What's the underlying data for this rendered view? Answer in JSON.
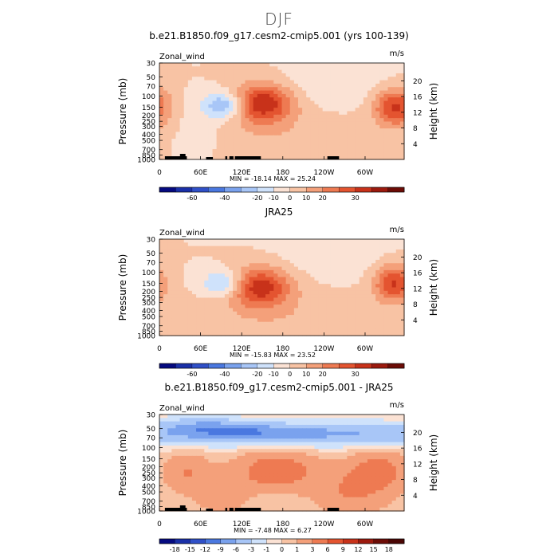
{
  "figure": {
    "title": "DJF"
  },
  "chart_data": [
    {
      "type": "heatmap",
      "title": "b.e21.B1850.f09_g17.cesm2-cmip5.001 (yrs 100-139)",
      "variable_label": "Zonal_wind",
      "units_label": "m/s",
      "ylabel": "Pressure (mb)",
      "ylabel_right": "Height (km)",
      "x_ticks": [
        "0",
        "60E",
        "120E",
        "180",
        "120W",
        "60W"
      ],
      "x_tick_values": [
        0,
        60,
        120,
        180,
        240,
        300
      ],
      "xlim": [
        0,
        357
      ],
      "y_ticks": [
        "30",
        "50",
        "70",
        "100",
        "150",
        "200",
        "250",
        "300",
        "400",
        "500",
        "700",
        "850",
        "1000"
      ],
      "y_tick_values": [
        30,
        50,
        70,
        100,
        150,
        200,
        250,
        300,
        400,
        500,
        700,
        850,
        1000
      ],
      "ylim": [
        1000,
        30
      ],
      "y_scale": "log",
      "height_ticks": [
        "4",
        "8",
        "12",
        "16",
        "20"
      ],
      "height_tick_values": [
        4,
        8,
        12,
        16,
        20
      ],
      "stats": "MIN = -18.14   MAX =  25.24",
      "min": -18.14,
      "max": 25.24,
      "colorbar_labels": [
        "-60",
        "-40",
        "-20",
        "-10",
        "0",
        "10",
        "20",
        "30"
      ],
      "colorbar_levels": [
        -60,
        -50,
        -40,
        -30,
        -20,
        -15,
        -10,
        -5,
        0,
        5,
        10,
        15,
        20,
        25,
        30
      ],
      "has_topography": true,
      "features": [
        {
          "lon": 145,
          "p": 120,
          "value": 25
        },
        {
          "lon": 342,
          "p": 150,
          "value": 23
        },
        {
          "lon": 95,
          "p": 150,
          "value": -18
        }
      ]
    },
    {
      "type": "heatmap",
      "title": "JRA25",
      "variable_label": "Zonal_wind",
      "units_label": "m/s",
      "ylabel": "Pressure (mb)",
      "ylabel_right": "Height (km)",
      "x_ticks": [
        "0",
        "60E",
        "120E",
        "180",
        "120W",
        "60W"
      ],
      "x_tick_values": [
        0,
        60,
        120,
        180,
        240,
        300
      ],
      "xlim": [
        0,
        357
      ],
      "y_ticks": [
        "30",
        "50",
        "70",
        "100",
        "150",
        "200",
        "250",
        "300",
        "400",
        "500",
        "700",
        "850",
        "1000"
      ],
      "y_tick_values": [
        30,
        50,
        70,
        100,
        150,
        200,
        250,
        300,
        400,
        500,
        700,
        850,
        1000
      ],
      "ylim": [
        1000,
        30
      ],
      "y_scale": "log",
      "height_ticks": [
        "4",
        "8",
        "12",
        "16",
        "20"
      ],
      "height_tick_values": [
        4,
        8,
        12,
        16,
        20
      ],
      "stats": "MIN = -15.83   MAX =  23.52",
      "min": -15.83,
      "max": 23.52,
      "colorbar_labels": [
        "-60",
        "-40",
        "-20",
        "-10",
        "0",
        "10",
        "20",
        "30"
      ],
      "colorbar_levels": [
        -60,
        -50,
        -40,
        -30,
        -20,
        -15,
        -10,
        -5,
        0,
        5,
        10,
        15,
        20,
        25,
        30
      ],
      "has_topography": false,
      "features": [
        {
          "lon": 140,
          "p": 200,
          "value": 23
        },
        {
          "lon": 340,
          "p": 150,
          "value": 21
        },
        {
          "lon": 95,
          "p": 150,
          "value": -15
        }
      ]
    },
    {
      "type": "heatmap",
      "title": "b.e21.B1850.f09_g17.cesm2-cmip5.001 - JRA25",
      "variable_label": "Zonal_wind",
      "units_label": "m/s",
      "ylabel": "Pressure (mb)",
      "ylabel_right": "Height (km)",
      "x_ticks": [
        "0",
        "60E",
        "120E",
        "180",
        "120W",
        "60W"
      ],
      "x_tick_values": [
        0,
        60,
        120,
        180,
        240,
        300
      ],
      "xlim": [
        0,
        357
      ],
      "y_ticks": [
        "30",
        "50",
        "70",
        "100",
        "150",
        "200",
        "250",
        "300",
        "400",
        "500",
        "700",
        "850",
        "1000"
      ],
      "y_tick_values": [
        30,
        50,
        70,
        100,
        150,
        200,
        250,
        300,
        400,
        500,
        700,
        850,
        1000
      ],
      "ylim": [
        1000,
        30
      ],
      "y_scale": "log",
      "height_ticks": [
        "4",
        "8",
        "12",
        "16",
        "20"
      ],
      "height_tick_values": [
        4,
        8,
        12,
        16,
        20
      ],
      "stats": "MIN =  -7.48   MAX =   6.27",
      "min": -7.48,
      "max": 6.27,
      "colorbar_labels": [
        "-18",
        "-15",
        "-12",
        "-9",
        "-6",
        "-3",
        "-1",
        "0",
        "1",
        "3",
        "6",
        "9",
        "12",
        "15",
        "18"
      ],
      "colorbar_levels": [
        -18,
        -15,
        -12,
        -9,
        -6,
        -3,
        -1,
        0,
        1,
        3,
        6,
        9,
        12,
        15,
        18
      ],
      "has_topography": true,
      "features": [
        {
          "lon": 120,
          "p": 60,
          "value": -7
        },
        {
          "lon": 170,
          "p": 200,
          "value": 6
        },
        {
          "lon": 320,
          "p": 200,
          "value": 5
        }
      ]
    }
  ],
  "colors": {
    "abs_scale": [
      "#050a80",
      "#1a30a8",
      "#3050c8",
      "#4a78e0",
      "#7aa2ee",
      "#a8c6f7",
      "#cfe2fb",
      "#fbe2d4",
      "#f8c3a4",
      "#f4a07a",
      "#ee7a52",
      "#e45430",
      "#c8321a",
      "#9c1a0e",
      "#6c0c06"
    ],
    "diff_scale": [
      "#050a80",
      "#1a30a8",
      "#3050c8",
      "#4a78e0",
      "#7aa2ee",
      "#a8c6f7",
      "#cfe2fb",
      "#fbe2d4",
      "#f8c3a4",
      "#f4a07a",
      "#ee7a52",
      "#e45430",
      "#c8321a",
      "#9c1a0e",
      "#6c0c06",
      "#4a0604"
    ],
    "topography": "#000000"
  }
}
